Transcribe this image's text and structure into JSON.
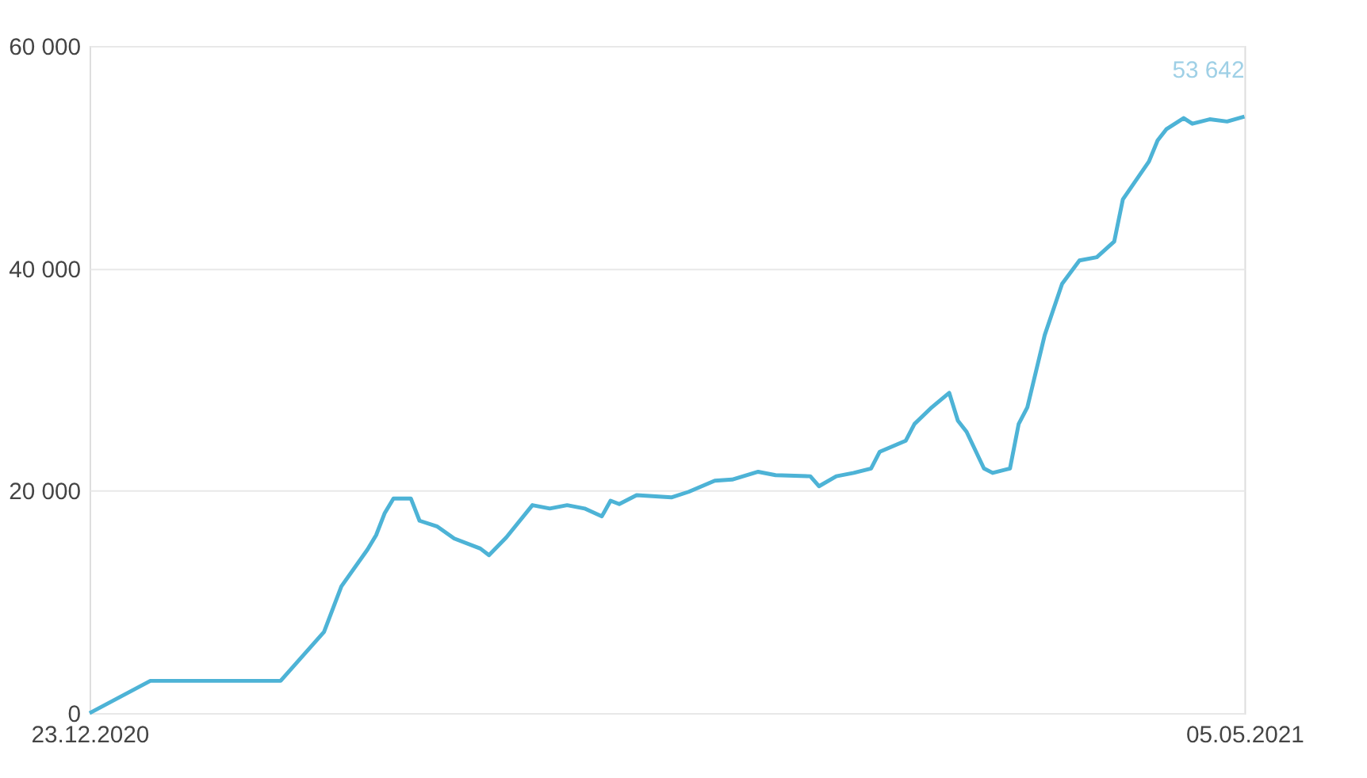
{
  "chart_data": {
    "type": "line",
    "x": [
      "2020-12-23",
      "2020-12-30",
      "2021-01-14",
      "2021-01-19",
      "2021-01-21",
      "2021-01-24",
      "2021-01-25",
      "2021-01-26",
      "2021-01-27",
      "2021-01-29",
      "2021-01-30",
      "2021-02-01",
      "2021-02-03",
      "2021-02-06",
      "2021-02-07",
      "2021-02-09",
      "2021-02-12",
      "2021-02-14",
      "2021-02-16",
      "2021-02-18",
      "2021-02-20",
      "2021-02-21",
      "2021-02-22",
      "2021-02-24",
      "2021-02-28",
      "2021-03-02",
      "2021-03-05",
      "2021-03-07",
      "2021-03-10",
      "2021-03-12",
      "2021-03-16",
      "2021-03-17",
      "2021-03-19",
      "2021-03-21",
      "2021-03-23",
      "2021-03-24",
      "2021-03-27",
      "2021-03-28",
      "2021-03-30",
      "2021-04-01",
      "2021-04-02",
      "2021-04-03",
      "2021-04-05",
      "2021-04-06",
      "2021-04-08",
      "2021-04-09",
      "2021-04-10",
      "2021-04-12",
      "2021-04-14",
      "2021-04-16",
      "2021-04-18",
      "2021-04-20",
      "2021-04-21",
      "2021-04-24",
      "2021-04-25",
      "2021-04-26",
      "2021-04-28",
      "2021-04-29",
      "2021-05-01",
      "2021-05-03",
      "2021-05-05"
    ],
    "series": [
      {
        "color": "#4db3d6",
        "values": [
          0,
          2900,
          2900,
          7300,
          11400,
          14700,
          16000,
          18000,
          19300,
          19300,
          17300,
          16800,
          15700,
          14800,
          14200,
          15800,
          18700,
          18400,
          18700,
          18400,
          17700,
          19100,
          18800,
          19600,
          19400,
          19900,
          20900,
          21000,
          21700,
          21400,
          21300,
          20400,
          21300,
          21600,
          22000,
          23500,
          24500,
          26000,
          27500,
          28800,
          26300,
          25300,
          22000,
          21600,
          22000,
          26000,
          27500,
          34000,
          38600,
          40700,
          41000,
          42400,
          46200,
          49600,
          51500,
          52500,
          53500,
          53000,
          53400,
          53200,
          53642
        ]
      }
    ],
    "xlim": [
      "2020-12-23",
      "2021-05-05"
    ],
    "xticks": [
      {
        "value": "2020-12-23",
        "label": "23.12.2020"
      },
      {
        "value": "2021-05-05",
        "label": "05.05.2021"
      }
    ],
    "ylim": [
      0,
      60000
    ],
    "yticks": [
      {
        "value": 0,
        "label": "0"
      },
      {
        "value": 20000,
        "label": "20 000"
      },
      {
        "value": 40000,
        "label": "40 000"
      },
      {
        "value": 60000,
        "label": "60 000"
      }
    ],
    "annotations": [
      {
        "text": "53 642",
        "x": "2021-05-05",
        "y": 53642
      }
    ],
    "grid": "y",
    "marker": "none",
    "line_style": "solid",
    "legend": false
  }
}
